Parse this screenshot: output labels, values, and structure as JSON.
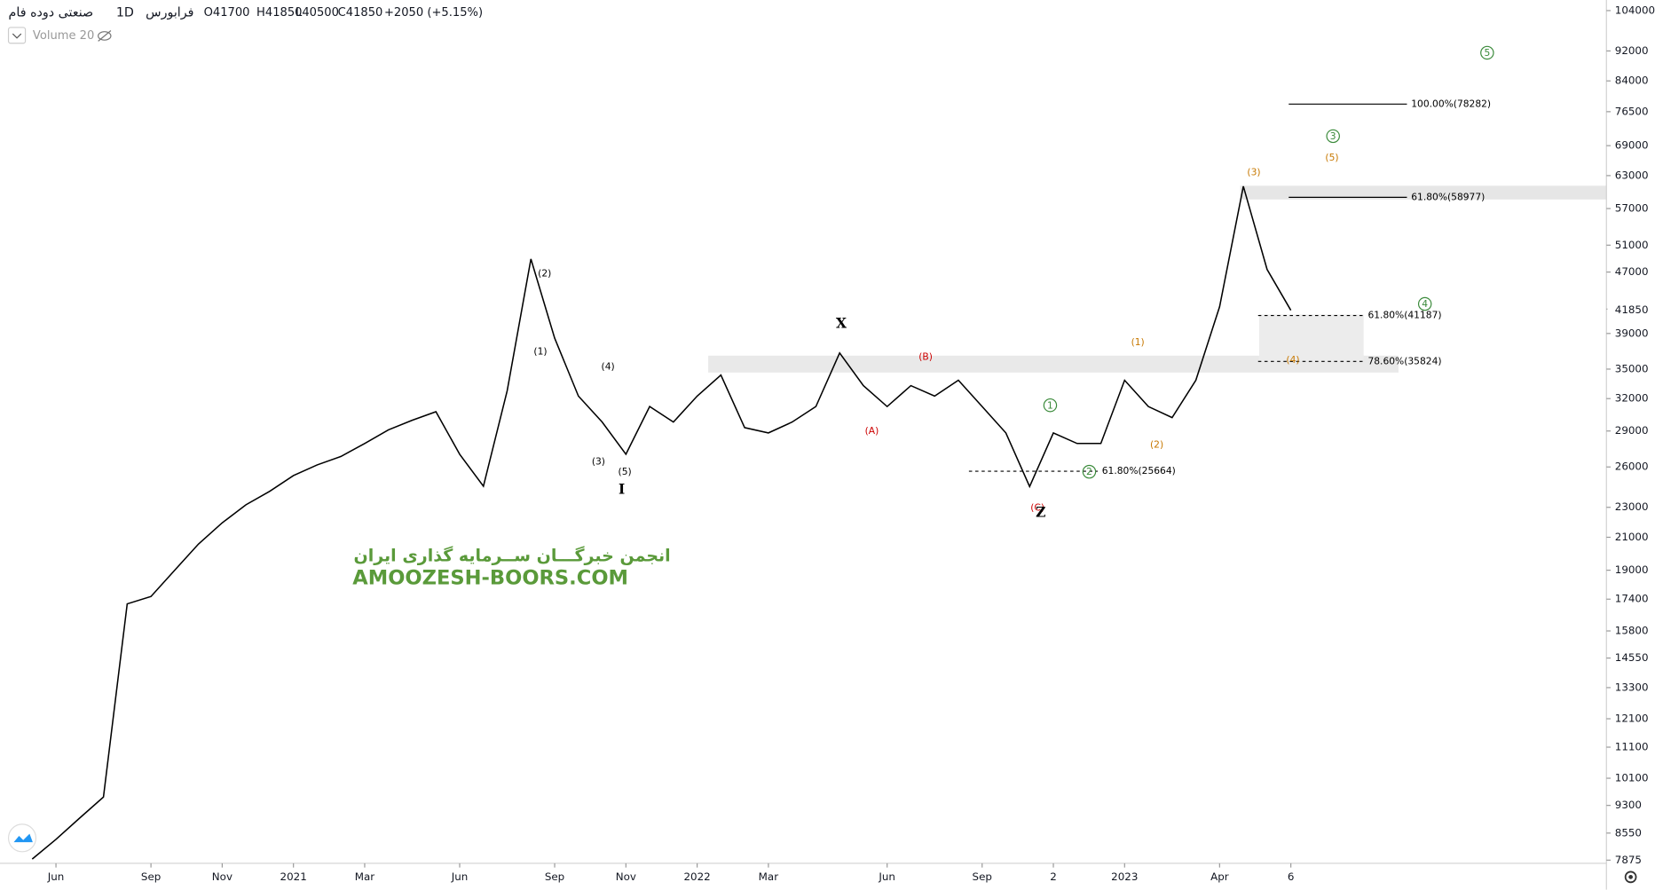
{
  "chart_data": {
    "type": "line",
    "header": {
      "symbol": "صنعتی دوده فام",
      "interval": "1D",
      "exchange": "فرابورس",
      "ohlc": [
        "O41700",
        "H41850",
        "L40500",
        "C41850",
        "+2050 (+5.15%)"
      ],
      "indicator": "Volume 20"
    },
    "categories": [
      null,
      "Jun",
      null,
      null,
      null,
      "Sep",
      null,
      null,
      "Nov",
      null,
      null,
      "2021",
      null,
      null,
      "Mar",
      null,
      null,
      null,
      "Jun",
      null,
      null,
      null,
      "Sep",
      null,
      null,
      "Nov",
      null,
      null,
      "2022",
      null,
      null,
      "Mar",
      null,
      null,
      null,
      null,
      "Jun",
      null,
      null,
      null,
      "Sep",
      null,
      null,
      "2",
      null,
      null,
      "2023",
      null,
      null,
      null,
      "Apr",
      null,
      null,
      "6"
    ],
    "values": [
      7900,
      8390,
      8950,
      9540,
      17150,
      17540,
      19000,
      20570,
      21940,
      23180,
      24150,
      25330,
      26160,
      26840,
      27920,
      29100,
      29960,
      30750,
      27020,
      24520,
      32770,
      48900,
      38450,
      32250,
      29800,
      27020,
      31240,
      29800,
      32250,
      34370,
      29300,
      28830,
      29800,
      31240,
      36750,
      33290,
      31240,
      33290,
      32250,
      33830,
      31240,
      28830,
      24500,
      28830,
      27920,
      27920,
      33830,
      31240,
      30200,
      33830,
      42300,
      61000,
      47380,
      41850
    ],
    "color": "#000000",
    "log_scale": true,
    "ylim": [
      7800,
      107400
    ],
    "yticks": [
      104000,
      92000,
      84000,
      76500,
      69000,
      63000,
      57000,
      51000,
      47000,
      42000,
      39000,
      35000,
      32000,
      29000,
      26000,
      23000,
      21000,
      19000,
      17400,
      15800,
      14550,
      13300,
      12100,
      11100,
      10100,
      9300,
      8550,
      7875
    ],
    "last_price": 41850,
    "fib_levels": [
      {
        "value": 78282,
        "label": "100.00%(78282)"
      },
      {
        "value": 58977,
        "label": "61.80%(58977)"
      },
      {
        "value": 41187,
        "label": "61.80%(41187)"
      },
      {
        "value": 35824,
        "label": "78.60%(35824)"
      },
      {
        "value": 25664,
        "label": "61.80%(25664)"
      }
    ],
    "annotations": [
      {
        "text": "(2)",
        "color": "#000000"
      },
      {
        "text": "(1)",
        "color": "#000000"
      },
      {
        "text": "(4)",
        "color": "#000000"
      },
      {
        "text": "(3)",
        "color": "#000000"
      },
      {
        "text": "(5)",
        "color": "#000000"
      },
      {
        "text": "I",
        "color": "#000000"
      },
      {
        "text": "X",
        "color": "#000000"
      },
      {
        "text": "(A)",
        "color": "#cc0000"
      },
      {
        "text": "(B)",
        "color": "#cc0000"
      },
      {
        "text": "(C)",
        "color": "#cc0000"
      },
      {
        "text": "Z",
        "color": "#000000"
      },
      {
        "text": "1",
        "color": "#3a8a3a"
      },
      {
        "text": "2",
        "color": "#3a8a3a"
      },
      {
        "text": "(1)",
        "color": "#c77800"
      },
      {
        "text": "(2)",
        "color": "#c77800"
      },
      {
        "text": "(3)",
        "color": "#c77800"
      },
      {
        "text": "(5)",
        "color": "#c77800"
      },
      {
        "text": "3",
        "color": "#3a8a3a"
      },
      {
        "text": "5",
        "color": "#3a8a3a"
      },
      {
        "text": "4",
        "color": "#3a8a3a"
      },
      {
        "text": "(4)",
        "color": "#c77800"
      }
    ],
    "watermark": [
      "انجمن خبرگـــان ســرمایه گذاری ایران",
      "AMOOZESH-BOORS.COM"
    ]
  }
}
